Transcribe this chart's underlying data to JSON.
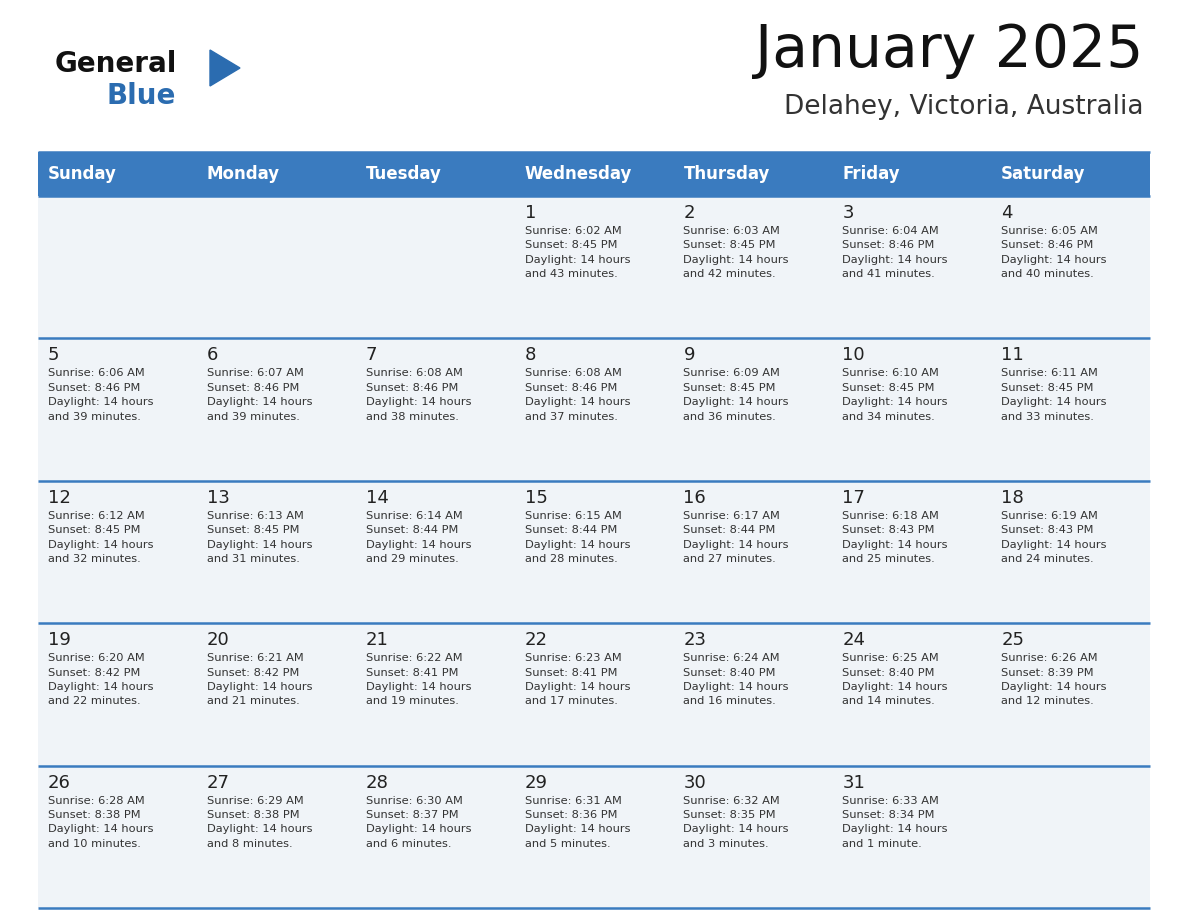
{
  "title": "January 2025",
  "subtitle": "Delahey, Victoria, Australia",
  "header_color": "#3a7bbf",
  "header_text_color": "#ffffff",
  "cell_bg_color": "#f0f4f8",
  "border_color": "#3a7bbf",
  "title_color": "#111111",
  "subtitle_color": "#333333",
  "day_num_color": "#222222",
  "info_color": "#333333",
  "logo_general_color": "#111111",
  "logo_blue_color": "#2b6cb0",
  "days_of_week": [
    "Sunday",
    "Monday",
    "Tuesday",
    "Wednesday",
    "Thursday",
    "Friday",
    "Saturday"
  ],
  "weeks": [
    [
      {
        "day": null,
        "info": ""
      },
      {
        "day": null,
        "info": ""
      },
      {
        "day": null,
        "info": ""
      },
      {
        "day": 1,
        "info": "Sunrise: 6:02 AM\nSunset: 8:45 PM\nDaylight: 14 hours\nand 43 minutes."
      },
      {
        "day": 2,
        "info": "Sunrise: 6:03 AM\nSunset: 8:45 PM\nDaylight: 14 hours\nand 42 minutes."
      },
      {
        "day": 3,
        "info": "Sunrise: 6:04 AM\nSunset: 8:46 PM\nDaylight: 14 hours\nand 41 minutes."
      },
      {
        "day": 4,
        "info": "Sunrise: 6:05 AM\nSunset: 8:46 PM\nDaylight: 14 hours\nand 40 minutes."
      }
    ],
    [
      {
        "day": 5,
        "info": "Sunrise: 6:06 AM\nSunset: 8:46 PM\nDaylight: 14 hours\nand 39 minutes."
      },
      {
        "day": 6,
        "info": "Sunrise: 6:07 AM\nSunset: 8:46 PM\nDaylight: 14 hours\nand 39 minutes."
      },
      {
        "day": 7,
        "info": "Sunrise: 6:08 AM\nSunset: 8:46 PM\nDaylight: 14 hours\nand 38 minutes."
      },
      {
        "day": 8,
        "info": "Sunrise: 6:08 AM\nSunset: 8:46 PM\nDaylight: 14 hours\nand 37 minutes."
      },
      {
        "day": 9,
        "info": "Sunrise: 6:09 AM\nSunset: 8:45 PM\nDaylight: 14 hours\nand 36 minutes."
      },
      {
        "day": 10,
        "info": "Sunrise: 6:10 AM\nSunset: 8:45 PM\nDaylight: 14 hours\nand 34 minutes."
      },
      {
        "day": 11,
        "info": "Sunrise: 6:11 AM\nSunset: 8:45 PM\nDaylight: 14 hours\nand 33 minutes."
      }
    ],
    [
      {
        "day": 12,
        "info": "Sunrise: 6:12 AM\nSunset: 8:45 PM\nDaylight: 14 hours\nand 32 minutes."
      },
      {
        "day": 13,
        "info": "Sunrise: 6:13 AM\nSunset: 8:45 PM\nDaylight: 14 hours\nand 31 minutes."
      },
      {
        "day": 14,
        "info": "Sunrise: 6:14 AM\nSunset: 8:44 PM\nDaylight: 14 hours\nand 29 minutes."
      },
      {
        "day": 15,
        "info": "Sunrise: 6:15 AM\nSunset: 8:44 PM\nDaylight: 14 hours\nand 28 minutes."
      },
      {
        "day": 16,
        "info": "Sunrise: 6:17 AM\nSunset: 8:44 PM\nDaylight: 14 hours\nand 27 minutes."
      },
      {
        "day": 17,
        "info": "Sunrise: 6:18 AM\nSunset: 8:43 PM\nDaylight: 14 hours\nand 25 minutes."
      },
      {
        "day": 18,
        "info": "Sunrise: 6:19 AM\nSunset: 8:43 PM\nDaylight: 14 hours\nand 24 minutes."
      }
    ],
    [
      {
        "day": 19,
        "info": "Sunrise: 6:20 AM\nSunset: 8:42 PM\nDaylight: 14 hours\nand 22 minutes."
      },
      {
        "day": 20,
        "info": "Sunrise: 6:21 AM\nSunset: 8:42 PM\nDaylight: 14 hours\nand 21 minutes."
      },
      {
        "day": 21,
        "info": "Sunrise: 6:22 AM\nSunset: 8:41 PM\nDaylight: 14 hours\nand 19 minutes."
      },
      {
        "day": 22,
        "info": "Sunrise: 6:23 AM\nSunset: 8:41 PM\nDaylight: 14 hours\nand 17 minutes."
      },
      {
        "day": 23,
        "info": "Sunrise: 6:24 AM\nSunset: 8:40 PM\nDaylight: 14 hours\nand 16 minutes."
      },
      {
        "day": 24,
        "info": "Sunrise: 6:25 AM\nSunset: 8:40 PM\nDaylight: 14 hours\nand 14 minutes."
      },
      {
        "day": 25,
        "info": "Sunrise: 6:26 AM\nSunset: 8:39 PM\nDaylight: 14 hours\nand 12 minutes."
      }
    ],
    [
      {
        "day": 26,
        "info": "Sunrise: 6:28 AM\nSunset: 8:38 PM\nDaylight: 14 hours\nand 10 minutes."
      },
      {
        "day": 27,
        "info": "Sunrise: 6:29 AM\nSunset: 8:38 PM\nDaylight: 14 hours\nand 8 minutes."
      },
      {
        "day": 28,
        "info": "Sunrise: 6:30 AM\nSunset: 8:37 PM\nDaylight: 14 hours\nand 6 minutes."
      },
      {
        "day": 29,
        "info": "Sunrise: 6:31 AM\nSunset: 8:36 PM\nDaylight: 14 hours\nand 5 minutes."
      },
      {
        "day": 30,
        "info": "Sunrise: 6:32 AM\nSunset: 8:35 PM\nDaylight: 14 hours\nand 3 minutes."
      },
      {
        "day": 31,
        "info": "Sunrise: 6:33 AM\nSunset: 8:34 PM\nDaylight: 14 hours\nand 1 minute."
      },
      {
        "day": null,
        "info": ""
      }
    ]
  ]
}
